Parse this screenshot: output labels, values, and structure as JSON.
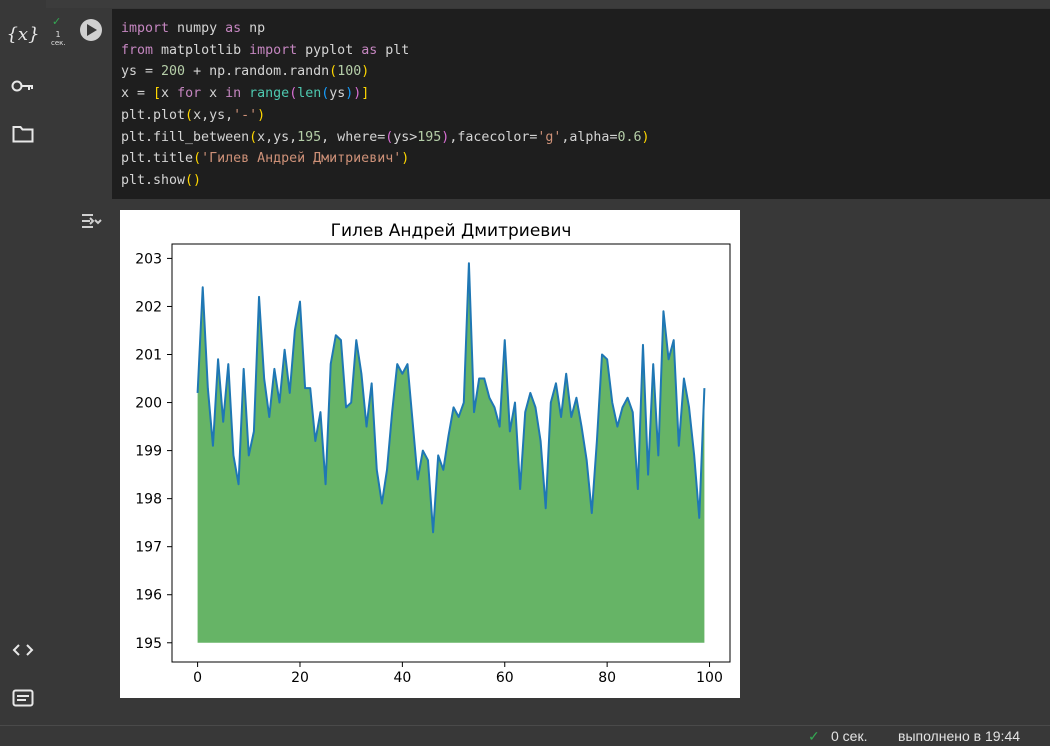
{
  "sidebar": {
    "variables_label": "{x}",
    "icons": [
      "variables-icon",
      "key-icon",
      "folder-icon",
      "code-snippets-icon",
      "terminal-icon"
    ]
  },
  "cell": {
    "exec_count": "1",
    "exec_unit": "сек.",
    "code_lines": [
      "import numpy as np",
      "from matplotlib import pyplot as plt",
      "ys = 200 + np.random.randn(100)",
      "x = [x for x in range(len(ys))]",
      "plt.plot(x,ys,'-')",
      "plt.fill_between(x,ys,195, where=(ys>195),facecolor='g',alpha=0.6)",
      "plt.title('Гилев Андрей Дмитриевич')",
      "plt.show()"
    ]
  },
  "status": {
    "time": "0 сек.",
    "completed": "выполнено в 19:44"
  },
  "colors": {
    "line": "#1f77b4",
    "fill": "#66b466",
    "check": "#34a853"
  },
  "chart_data": {
    "type": "area",
    "title": "Гилев Андрей Дмитриевич",
    "xlabel": "",
    "ylabel": "",
    "xlim": [
      -5,
      104
    ],
    "ylim": [
      194.6,
      203.3
    ],
    "xticks": [
      0,
      20,
      40,
      60,
      80,
      100
    ],
    "yticks": [
      195,
      196,
      197,
      198,
      199,
      200,
      201,
      202,
      203
    ],
    "fill_baseline": 195,
    "grid": false,
    "x": [
      0,
      1,
      2,
      3,
      4,
      5,
      6,
      7,
      8,
      9,
      10,
      11,
      12,
      13,
      14,
      15,
      16,
      17,
      18,
      19,
      20,
      21,
      22,
      23,
      24,
      25,
      26,
      27,
      28,
      29,
      30,
      31,
      32,
      33,
      34,
      35,
      36,
      37,
      38,
      39,
      40,
      41,
      42,
      43,
      44,
      45,
      46,
      47,
      48,
      49,
      50,
      51,
      52,
      53,
      54,
      55,
      56,
      57,
      58,
      59,
      60,
      61,
      62,
      63,
      64,
      65,
      66,
      67,
      68,
      69,
      70,
      71,
      72,
      73,
      74,
      75,
      76,
      77,
      78,
      79,
      80,
      81,
      82,
      83,
      84,
      85,
      86,
      87,
      88,
      89,
      90,
      91,
      92,
      93,
      94,
      95,
      96,
      97,
      98,
      99
    ],
    "y": [
      200.2,
      202.4,
      200.3,
      199.1,
      200.9,
      199.6,
      200.8,
      198.9,
      198.3,
      200.7,
      198.9,
      199.4,
      202.2,
      200.5,
      199.7,
      200.7,
      200.0,
      201.1,
      200.2,
      201.5,
      202.1,
      200.3,
      200.3,
      199.2,
      199.8,
      198.3,
      200.8,
      201.4,
      201.3,
      199.9,
      200.0,
      201.3,
      200.6,
      199.5,
      200.4,
      198.6,
      197.9,
      198.6,
      199.8,
      200.8,
      200.6,
      200.8,
      199.6,
      198.4,
      199.0,
      198.8,
      197.3,
      198.9,
      198.6,
      199.3,
      199.9,
      199.7,
      200.0,
      202.9,
      199.8,
      200.5,
      200.5,
      200.1,
      199.9,
      199.5,
      201.3,
      199.4,
      200.0,
      198.2,
      199.8,
      200.2,
      199.9,
      199.2,
      197.8,
      200.0,
      200.4,
      199.7,
      200.6,
      199.7,
      200.1,
      199.5,
      198.8,
      197.7,
      199.2,
      201.0,
      200.9,
      200.0,
      199.5,
      199.9,
      200.1,
      199.8,
      198.2,
      201.2,
      198.5,
      200.8,
      198.9,
      201.9,
      200.9,
      201.3,
      199.1,
      200.5,
      199.9,
      198.9,
      197.6,
      200.3
    ]
  }
}
